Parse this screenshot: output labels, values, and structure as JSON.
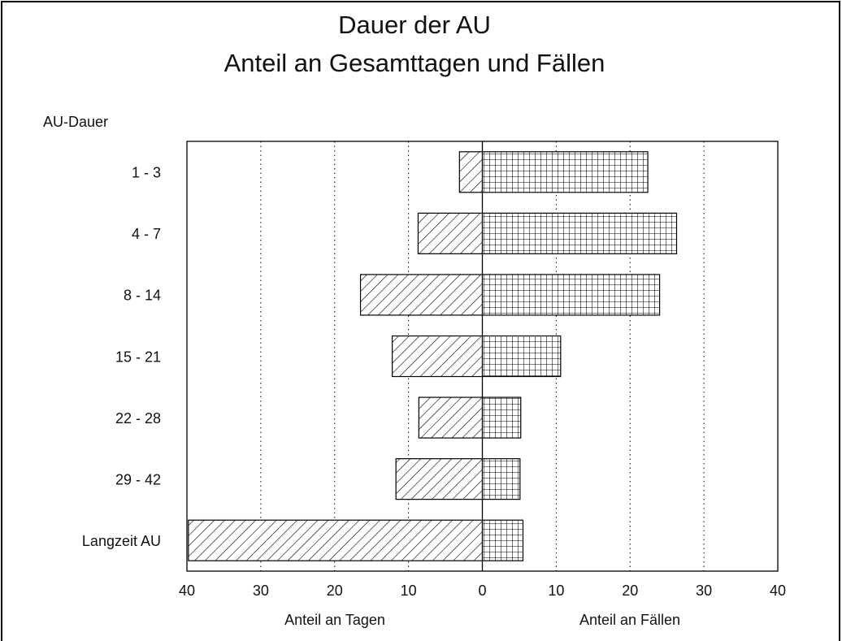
{
  "chart_data": {
    "type": "butterfly-bar",
    "title": [
      "Dauer der AU",
      "Anteil an Gesamttagen und Fällen"
    ],
    "y_label": "AU-Dauer",
    "x_labels": [
      "Anteil an Tagen",
      "Anteil an Fällen"
    ],
    "categories": [
      "1 - 3",
      "4 - 7",
      "8 - 14",
      "15 - 21",
      "22 - 28",
      "29 - 42",
      "Langzeit AU"
    ],
    "series": [
      {
        "name": "Anteil an Tagen",
        "side": "left",
        "pattern": "hatch",
        "color": "#000000",
        "values": [
          3.1,
          8.7,
          16.5,
          12.2,
          8.6,
          11.7,
          39.8
        ]
      },
      {
        "name": "Anteil an Fällen",
        "side": "right",
        "pattern": "grid",
        "color": "#000000",
        "values": [
          22.4,
          26.3,
          24.0,
          10.6,
          5.2,
          5.1,
          5.5
        ]
      }
    ],
    "xlim": [
      -40,
      40
    ],
    "xticks": [
      {
        "value": -40,
        "label": "40"
      },
      {
        "value": -30,
        "label": "30"
      },
      {
        "value": -20,
        "label": "20"
      },
      {
        "value": -10,
        "label": "10"
      },
      0,
      10,
      20,
      30,
      40
    ],
    "grid": true
  }
}
